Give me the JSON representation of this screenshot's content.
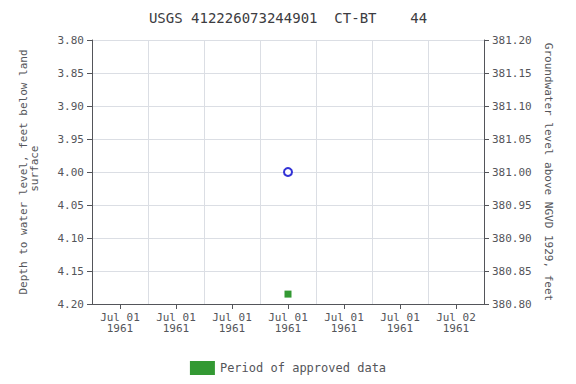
{
  "chart_data": {
    "type": "scatter",
    "title": "USGS 412226073244901  CT-BT    44",
    "y_label": "Depth to water level, feet below land\n surface",
    "y2_label": "Groundwater level above NGVD 1929, feet",
    "categories": [
      "Jul 01\n1961",
      "Jul 01\n1961",
      "Jul 01\n1961",
      "Jul 01\n1961",
      "Jul 01\n1961",
      "Jul 01\n1961",
      "Jul 02\n1961"
    ],
    "series": [
      {
        "color": "#0000cc",
        "marker": "circle",
        "values": [
          null,
          null,
          null,
          4.0,
          null,
          null,
          null
        ]
      },
      {
        "name": "Period of approved data",
        "color": "#008000",
        "marker": "square",
        "values": [
          null,
          null,
          null,
          4.185,
          null,
          null,
          null
        ]
      },
      {
        "axis": "y2",
        "values": [
          null,
          null,
          null,
          null,
          null,
          null,
          null
        ]
      }
    ],
    "ylim": [
      4.2,
      3.8
    ],
    "yticks": [
      {
        "value": 3.8,
        "label": "3.80"
      },
      {
        "value": 3.85,
        "label": "3.85"
      },
      {
        "value": 3.9,
        "label": "3.90"
      },
      {
        "value": 3.95,
        "label": "3.95"
      },
      {
        "value": 4.0,
        "label": "4.00"
      },
      {
        "value": 4.05,
        "label": "4.05"
      },
      {
        "value": 4.1,
        "label": "4.10"
      },
      {
        "value": 4.15,
        "label": "4.15"
      },
      {
        "value": 4.2,
        "label": "4.20"
      }
    ],
    "y2lim": [
      380.8,
      381.2
    ],
    "y2ticks": [
      {
        "value": 381.2,
        "label": "381.20"
      },
      {
        "value": 381.15,
        "label": "381.15"
      },
      {
        "value": 381.1,
        "label": "381.10"
      },
      {
        "value": 381.05,
        "label": "381.05"
      },
      {
        "value": 381.0,
        "label": "381.00"
      },
      {
        "value": 380.95,
        "label": "380.95"
      },
      {
        "value": 380.9,
        "label": "380.90"
      },
      {
        "value": 380.85,
        "label": "380.85"
      },
      {
        "value": 380.8,
        "label": "380.80"
      }
    ],
    "grid": true,
    "legend": "bottom"
  }
}
